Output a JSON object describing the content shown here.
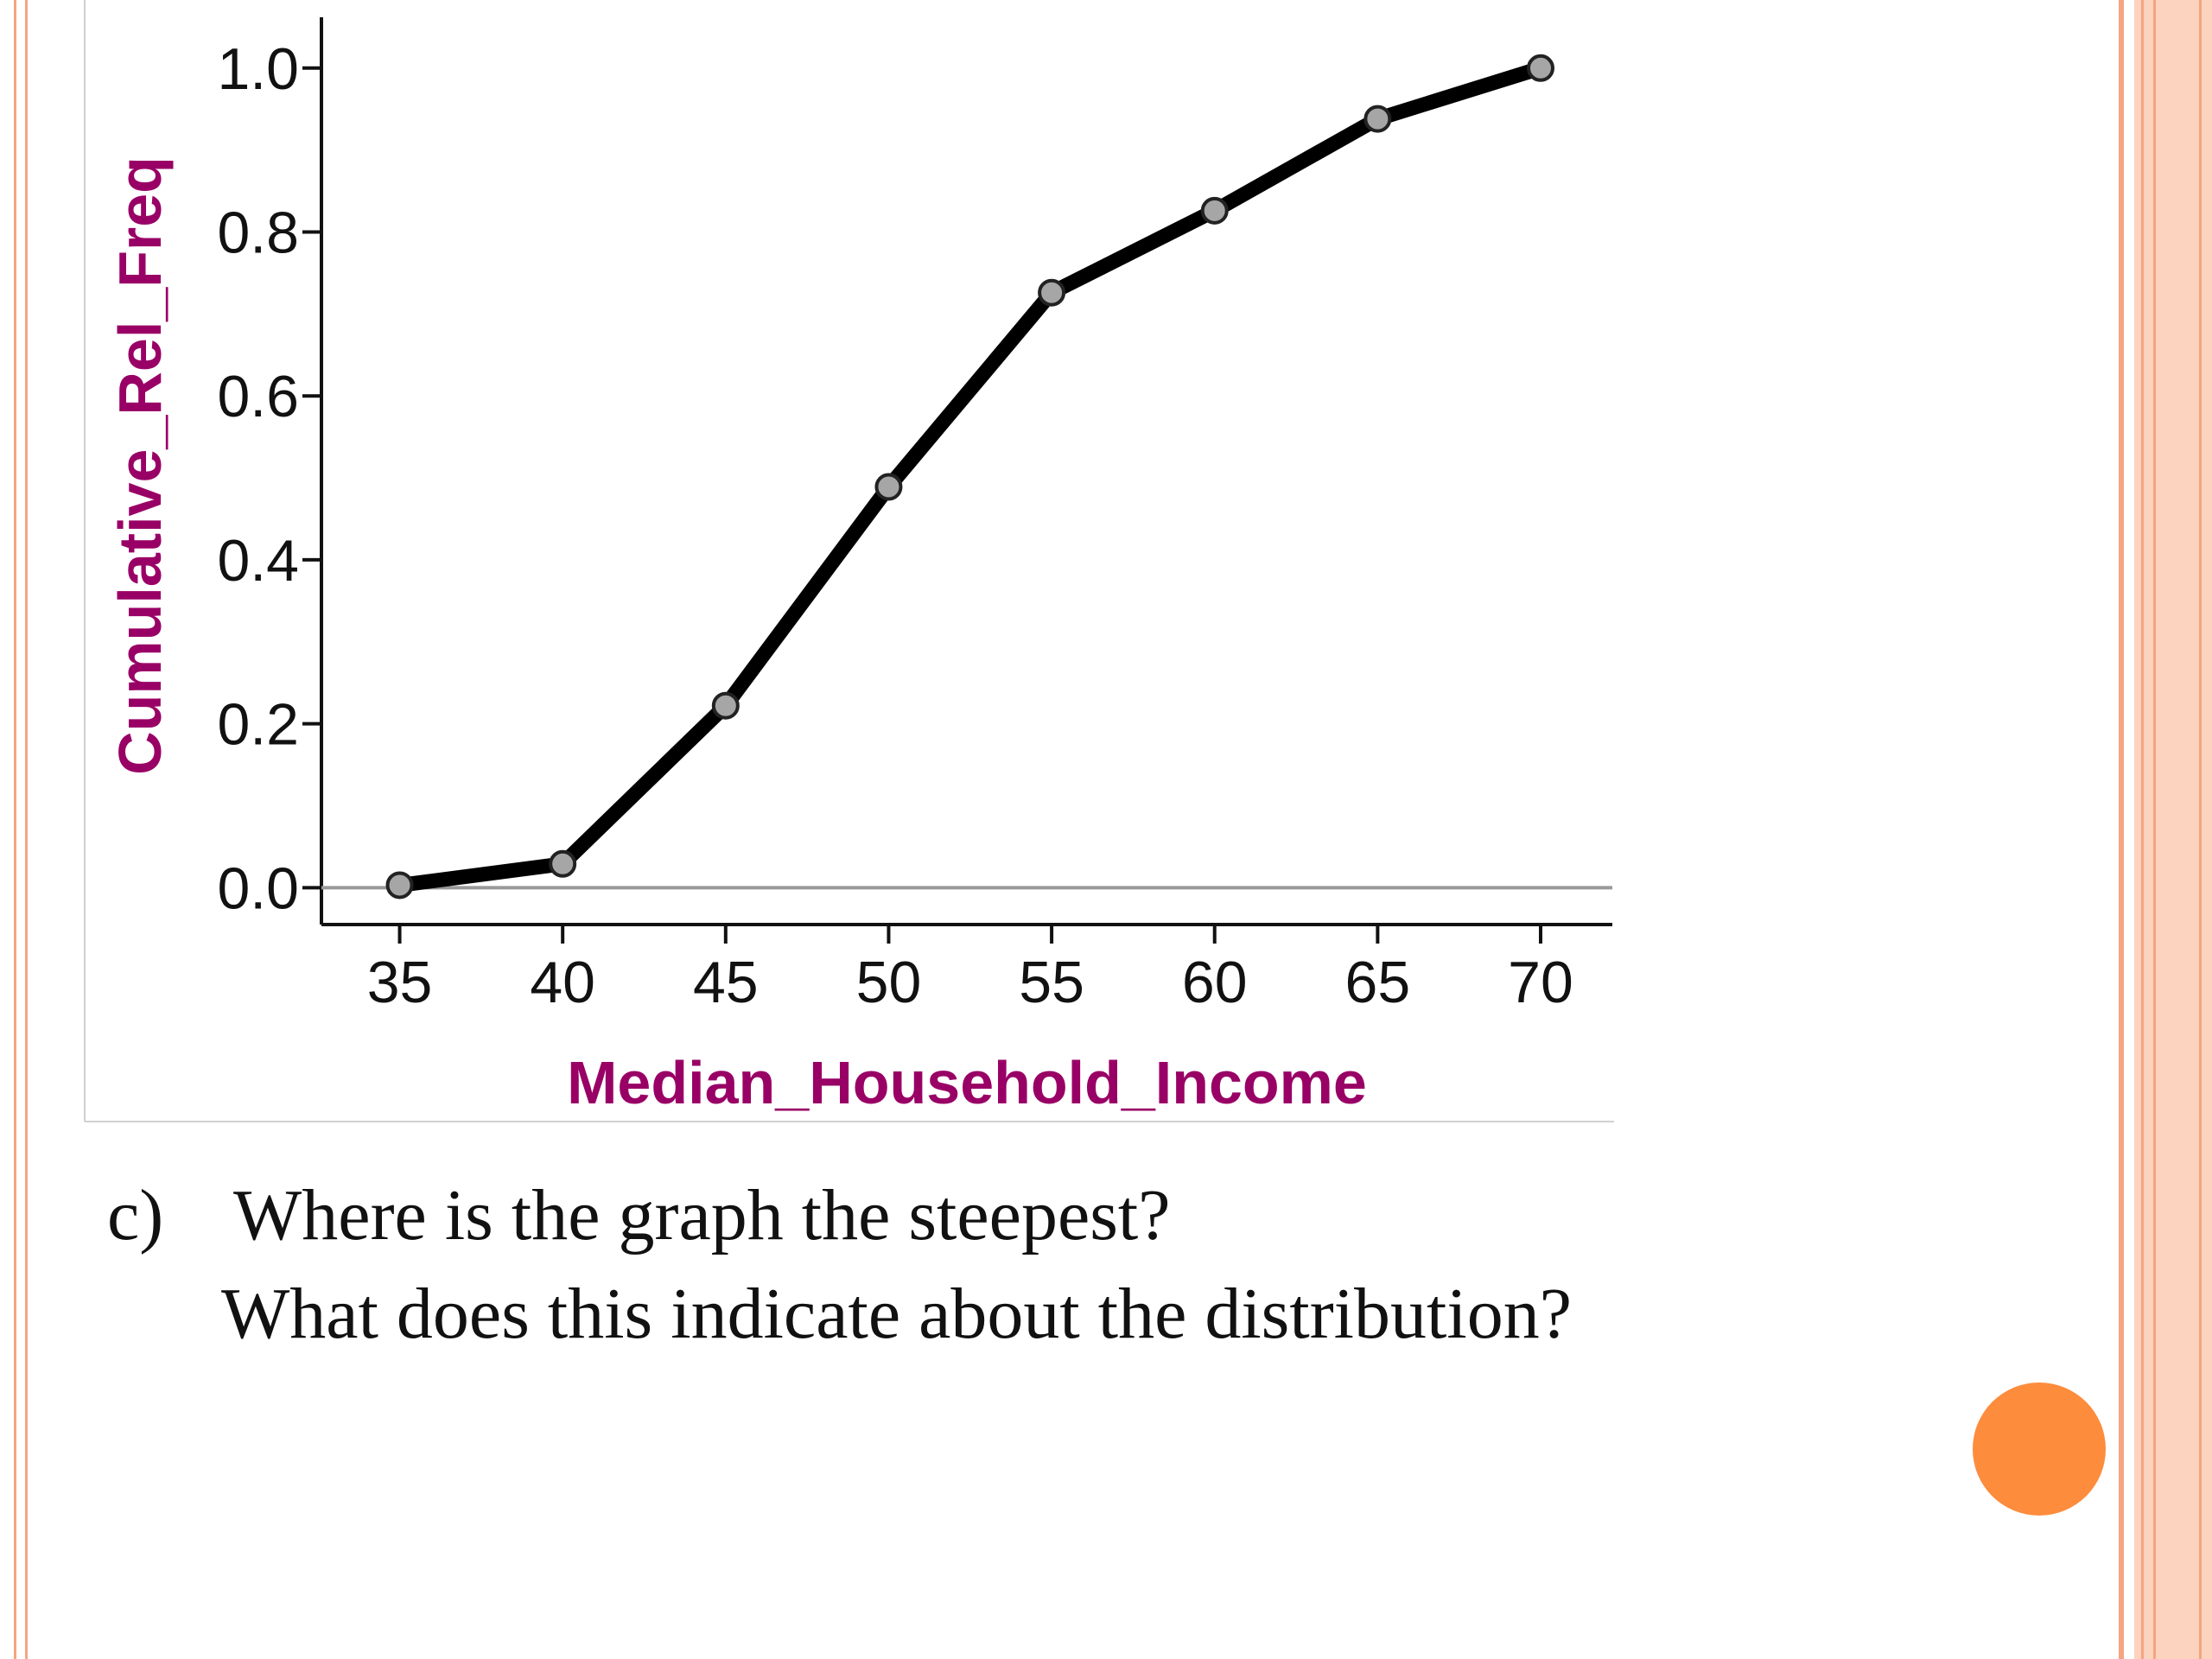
{
  "chart_data": {
    "type": "line",
    "x_label": "Median_Household_Income",
    "y_label": "Cumulative_Rel_Freq",
    "x": [
      35,
      40,
      45,
      50,
      55,
      60,
      65,
      70
    ],
    "values": [
      0.003,
      0.029,
      0.222,
      0.489,
      0.726,
      0.826,
      0.938,
      1.0
    ],
    "color": "#000000",
    "marker_color": "#a6a6a6",
    "label_color": "#990066",
    "xlim": [
      32.6,
      72.2
    ],
    "ylim": [
      -0.045,
      1.062
    ],
    "xticks": [
      35,
      40,
      45,
      50,
      55,
      60,
      65,
      70
    ],
    "yticks": [
      {
        "value": 0,
        "label": "0.0"
      },
      0.2,
      0.4,
      0.6,
      0.8,
      {
        "value": 1,
        "label": "1.0"
      }
    ],
    "zero_line": true
  },
  "question": {
    "marker": "c)",
    "line1": "Where is the graph the steepest?",
    "line2": "What does this indicate about the distribution?"
  }
}
